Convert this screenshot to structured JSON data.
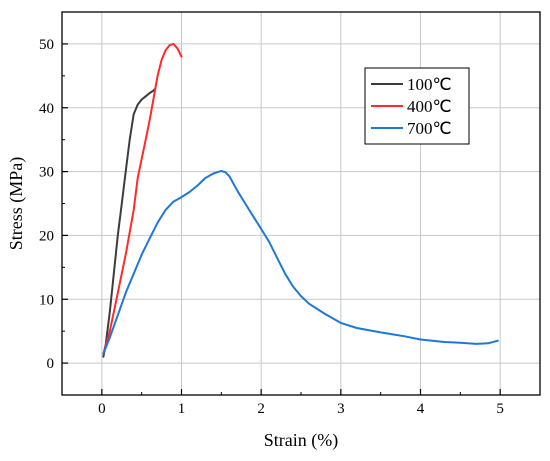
{
  "chart_data": {
    "type": "line",
    "xlabel": "Strain (%)",
    "ylabel": "Stress (MPa)",
    "xlim": [
      -0.5,
      5.5
    ],
    "ylim": [
      -5,
      55
    ],
    "xticks": [
      0,
      1,
      2,
      3,
      4,
      5
    ],
    "yticks": [
      0,
      10,
      20,
      30,
      40,
      50
    ],
    "grid": true,
    "legend_position": "top-right",
    "series": [
      {
        "name": "100℃",
        "color": "#3c3c3c",
        "points": [
          [
            0.02,
            1.0
          ],
          [
            0.05,
            3.0
          ],
          [
            0.1,
            8.0
          ],
          [
            0.15,
            14.0
          ],
          [
            0.2,
            20.0
          ],
          [
            0.25,
            25.0
          ],
          [
            0.3,
            30.0
          ],
          [
            0.35,
            35.0
          ],
          [
            0.4,
            39.0
          ],
          [
            0.45,
            40.5
          ],
          [
            0.5,
            41.3
          ],
          [
            0.55,
            41.8
          ],
          [
            0.6,
            42.3
          ],
          [
            0.65,
            42.7
          ],
          [
            0.67,
            43.0
          ]
        ]
      },
      {
        "name": "400℃",
        "color": "#ff2a2a",
        "points": [
          [
            0.02,
            1.5
          ],
          [
            0.1,
            5.0
          ],
          [
            0.2,
            11.0
          ],
          [
            0.3,
            17.0
          ],
          [
            0.4,
            24.0
          ],
          [
            0.45,
            29.0
          ],
          [
            0.5,
            32.0
          ],
          [
            0.55,
            35.0
          ],
          [
            0.6,
            38.0
          ],
          [
            0.65,
            41.5
          ],
          [
            0.7,
            45.0
          ],
          [
            0.75,
            47.5
          ],
          [
            0.8,
            49.0
          ],
          [
            0.85,
            49.8
          ],
          [
            0.9,
            50.0
          ],
          [
            0.95,
            49.3
          ],
          [
            1.0,
            48.0
          ]
        ]
      },
      {
        "name": "700℃",
        "color": "#1e78d8",
        "points": [
          [
            0.02,
            1.5
          ],
          [
            0.1,
            4.0
          ],
          [
            0.2,
            7.5
          ],
          [
            0.3,
            11.0
          ],
          [
            0.4,
            14.0
          ],
          [
            0.5,
            17.0
          ],
          [
            0.6,
            19.5
          ],
          [
            0.7,
            22.0
          ],
          [
            0.8,
            24.0
          ],
          [
            0.9,
            25.3
          ],
          [
            1.0,
            26.0
          ],
          [
            1.1,
            26.8
          ],
          [
            1.2,
            27.8
          ],
          [
            1.3,
            29.0
          ],
          [
            1.4,
            29.7
          ],
          [
            1.5,
            30.1
          ],
          [
            1.55,
            29.9
          ],
          [
            1.6,
            29.3
          ],
          [
            1.7,
            27.0
          ],
          [
            1.8,
            25.0
          ],
          [
            1.9,
            23.0
          ],
          [
            2.0,
            21.0
          ],
          [
            2.1,
            19.0
          ],
          [
            2.2,
            16.5
          ],
          [
            2.3,
            14.0
          ],
          [
            2.4,
            12.0
          ],
          [
            2.5,
            10.5
          ],
          [
            2.6,
            9.3
          ],
          [
            2.8,
            7.7
          ],
          [
            3.0,
            6.3
          ],
          [
            3.2,
            5.5
          ],
          [
            3.5,
            4.8
          ],
          [
            3.8,
            4.2
          ],
          [
            4.0,
            3.7
          ],
          [
            4.3,
            3.3
          ],
          [
            4.5,
            3.2
          ],
          [
            4.7,
            3.0
          ],
          [
            4.85,
            3.1
          ],
          [
            4.97,
            3.5
          ]
        ]
      }
    ]
  }
}
